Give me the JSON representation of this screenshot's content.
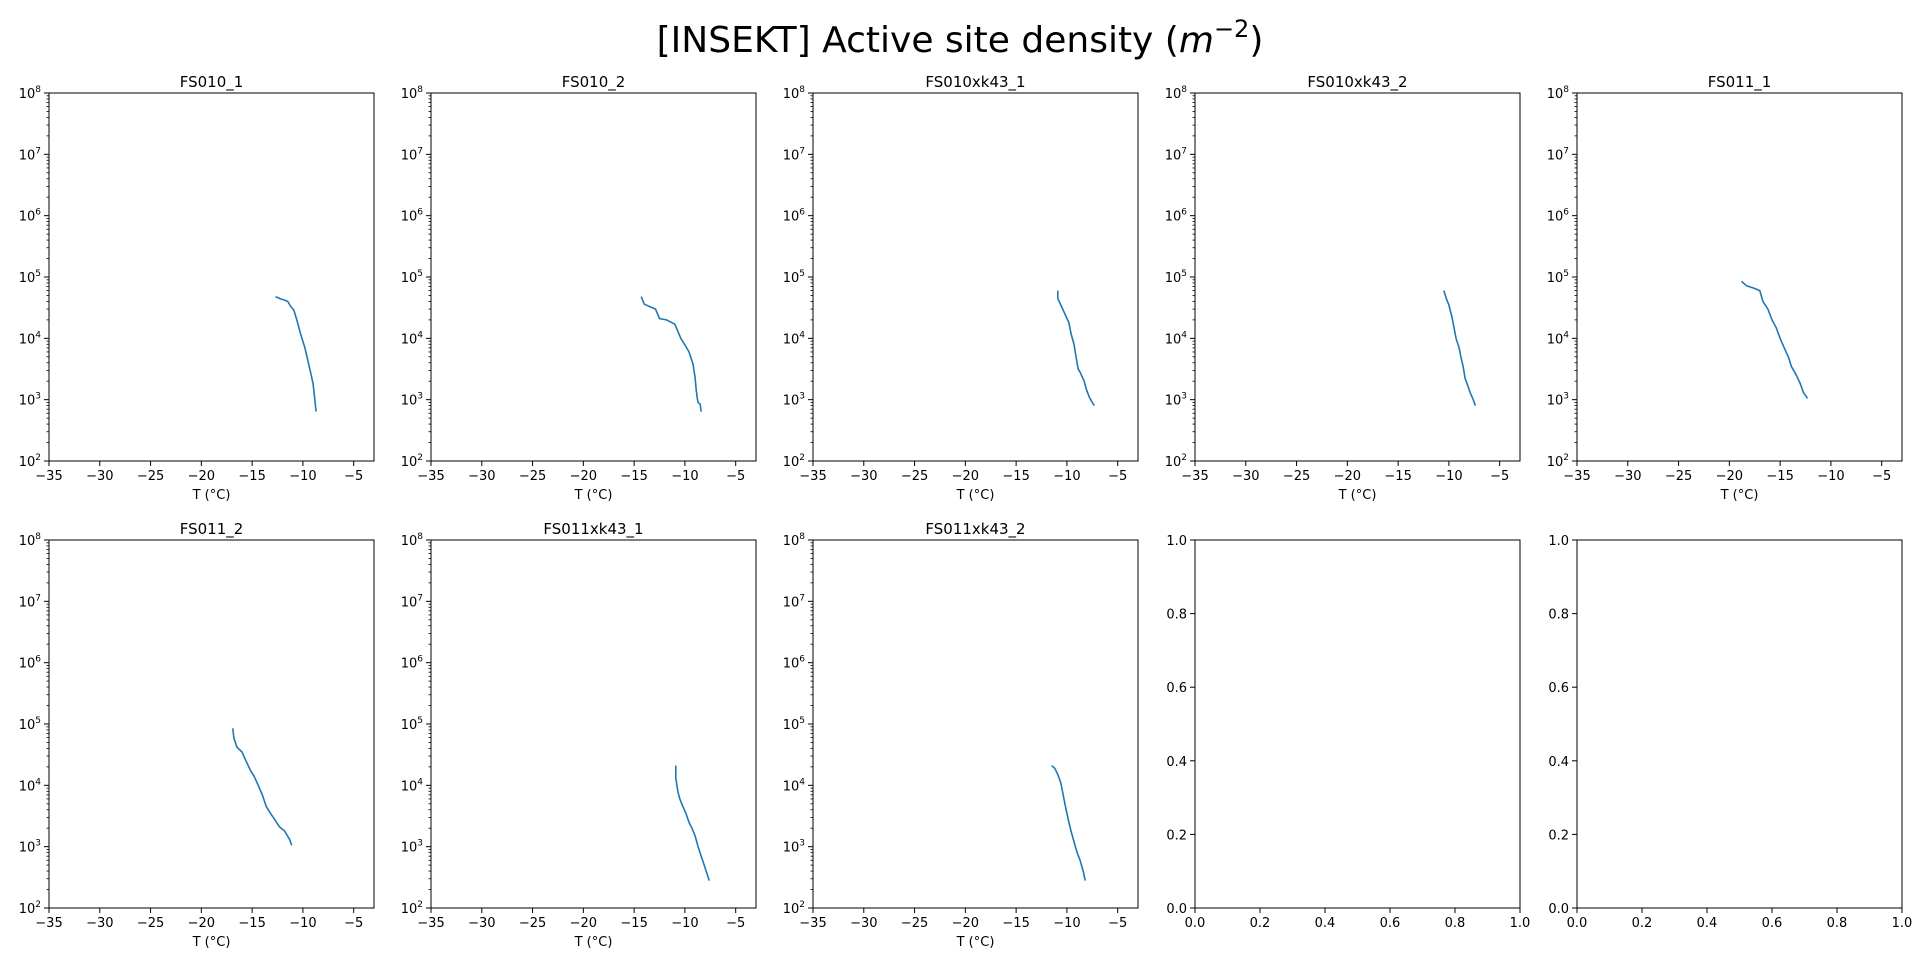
{
  "figure": {
    "title_prefix": "[INSEKT] Active site density (",
    "title_unit_base": "m",
    "title_unit_exponent": "−2",
    "title_suffix": ")"
  },
  "chart_data": [
    {
      "type": "line",
      "title": "FS010_1",
      "xlabel": "T (°C)",
      "ylabel": "",
      "xlim": [
        -35,
        -3
      ],
      "ylim": [
        100,
        100000000
      ],
      "yscale": "log",
      "xticks": [
        "−35",
        "−30",
        "−25",
        "−20",
        "−15",
        "−10",
        "−5"
      ],
      "yticks": [
        {
          "base": "10",
          "exp": "2"
        },
        {
          "base": "10",
          "exp": "3"
        },
        {
          "base": "10",
          "exp": "4"
        },
        {
          "base": "10",
          "exp": "5"
        },
        {
          "base": "10",
          "exp": "6"
        },
        {
          "base": "10",
          "exp": "7"
        },
        {
          "base": "10",
          "exp": "8"
        }
      ],
      "color": "#1f77b4",
      "x": [
        -12.7,
        -12.2,
        -11.8,
        -11.5,
        -11.2,
        -10.9,
        -10.6,
        -10.3,
        -10.1,
        -9.8,
        -9.6,
        -9.4,
        -9.2,
        -9.0,
        -8.9,
        -8.8,
        -8.7
      ],
      "y": [
        48000,
        44000,
        42000,
        40000,
        33000,
        29000,
        20000,
        13000,
        10000,
        7000,
        5000,
        3600,
        2600,
        1800,
        1300,
        900,
        640
      ]
    },
    {
      "type": "line",
      "title": "FS010_2",
      "xlabel": "T (°C)",
      "ylabel": "",
      "xlim": [
        -35,
        -3
      ],
      "ylim": [
        100,
        100000000
      ],
      "yscale": "log",
      "xticks": [
        "−35",
        "−30",
        "−25",
        "−20",
        "−15",
        "−10",
        "−5"
      ],
      "yticks": [
        {
          "base": "10",
          "exp": "2"
        },
        {
          "base": "10",
          "exp": "3"
        },
        {
          "base": "10",
          "exp": "4"
        },
        {
          "base": "10",
          "exp": "5"
        },
        {
          "base": "10",
          "exp": "6"
        },
        {
          "base": "10",
          "exp": "7"
        },
        {
          "base": "10",
          "exp": "8"
        }
      ],
      "color": "#1f77b4",
      "x": [
        -14.3,
        -14.0,
        -13.3,
        -12.9,
        -12.5,
        -11.8,
        -11.0,
        -10.7,
        -10.4,
        -10.0,
        -9.6,
        -9.2,
        -9.0,
        -8.9,
        -8.8,
        -8.7,
        -8.5,
        -8.4
      ],
      "y": [
        48000,
        36000,
        32000,
        30000,
        21000,
        20000,
        17000,
        13000,
        10000,
        7800,
        6000,
        3800,
        2300,
        1500,
        1100,
        900,
        850,
        640
      ]
    },
    {
      "type": "line",
      "title": "FS010xk43_1",
      "xlabel": "T (°C)",
      "ylabel": "",
      "xlim": [
        -35,
        -3
      ],
      "ylim": [
        100,
        100000000
      ],
      "yscale": "log",
      "xticks": [
        "−35",
        "−30",
        "−25",
        "−20",
        "−15",
        "−10",
        "−5"
      ],
      "yticks": [
        {
          "base": "10",
          "exp": "2"
        },
        {
          "base": "10",
          "exp": "3"
        },
        {
          "base": "10",
          "exp": "4"
        },
        {
          "base": "10",
          "exp": "5"
        },
        {
          "base": "10",
          "exp": "6"
        },
        {
          "base": "10",
          "exp": "7"
        },
        {
          "base": "10",
          "exp": "8"
        }
      ],
      "color": "#1f77b4",
      "x": [
        -10.9,
        -10.9,
        -10.6,
        -10.2,
        -9.8,
        -9.6,
        -9.3,
        -9.1,
        -8.9,
        -8.7,
        -8.3,
        -8.1,
        -7.8,
        -7.5,
        -7.3
      ],
      "y": [
        60000,
        45000,
        35000,
        25000,
        18000,
        12000,
        8000,
        5000,
        3200,
        2800,
        2000,
        1500,
        1100,
        900,
        800
      ]
    },
    {
      "type": "line",
      "title": "FS010xk43_2",
      "xlabel": "T (°C)",
      "ylabel": "",
      "xlim": [
        -35,
        -3
      ],
      "ylim": [
        100,
        100000000
      ],
      "yscale": "log",
      "xticks": [
        "−35",
        "−30",
        "−25",
        "−20",
        "−15",
        "−10",
        "−5"
      ],
      "yticks": [
        {
          "base": "10",
          "exp": "2"
        },
        {
          "base": "10",
          "exp": "3"
        },
        {
          "base": "10",
          "exp": "4"
        },
        {
          "base": "10",
          "exp": "5"
        },
        {
          "base": "10",
          "exp": "6"
        },
        {
          "base": "10",
          "exp": "7"
        },
        {
          "base": "10",
          "exp": "8"
        }
      ],
      "color": "#1f77b4",
      "x": [
        -10.5,
        -10.2,
        -10.0,
        -9.7,
        -9.5,
        -9.3,
        -9.0,
        -8.8,
        -8.6,
        -8.4,
        -8.2,
        -7.9,
        -7.6,
        -7.4
      ],
      "y": [
        60000,
        42000,
        35000,
        22000,
        15000,
        10000,
        7000,
        4800,
        3500,
        2200,
        1800,
        1300,
        1000,
        800
      ]
    },
    {
      "type": "line",
      "title": "FS011_1",
      "xlabel": "T (°C)",
      "ylabel": "",
      "xlim": [
        -35,
        -3
      ],
      "ylim": [
        100,
        100000000
      ],
      "yscale": "log",
      "xticks": [
        "−35",
        "−30",
        "−25",
        "−20",
        "−15",
        "−10",
        "−5"
      ],
      "yticks": [
        {
          "base": "10",
          "exp": "2"
        },
        {
          "base": "10",
          "exp": "3"
        },
        {
          "base": "10",
          "exp": "4"
        },
        {
          "base": "10",
          "exp": "5"
        },
        {
          "base": "10",
          "exp": "6"
        },
        {
          "base": "10",
          "exp": "7"
        },
        {
          "base": "10",
          "exp": "8"
        }
      ],
      "color": "#1f77b4",
      "x": [
        -18.8,
        -18.3,
        -17.5,
        -17.0,
        -16.7,
        -16.2,
        -15.8,
        -15.4,
        -15.0,
        -14.6,
        -14.2,
        -13.9,
        -13.4,
        -13.0,
        -12.7,
        -12.3
      ],
      "y": [
        85000,
        72000,
        65000,
        60000,
        40000,
        30000,
        20000,
        15000,
        10000,
        7000,
        5000,
        3500,
        2500,
        1800,
        1300,
        1050
      ]
    },
    {
      "type": "line",
      "title": "FS011_2",
      "xlabel": "T (°C)",
      "ylabel": "",
      "xlim": [
        -35,
        -3
      ],
      "ylim": [
        100,
        100000000
      ],
      "yscale": "log",
      "xticks": [
        "−35",
        "−30",
        "−25",
        "−20",
        "−15",
        "−10",
        "−5"
      ],
      "yticks": [
        {
          "base": "10",
          "exp": "2"
        },
        {
          "base": "10",
          "exp": "3"
        },
        {
          "base": "10",
          "exp": "4"
        },
        {
          "base": "10",
          "exp": "5"
        },
        {
          "base": "10",
          "exp": "6"
        },
        {
          "base": "10",
          "exp": "7"
        },
        {
          "base": "10",
          "exp": "8"
        }
      ],
      "color": "#1f77b4",
      "x": [
        -16.9,
        -16.8,
        -16.5,
        -16.0,
        -15.6,
        -15.2,
        -14.8,
        -14.4,
        -14.0,
        -13.6,
        -13.2,
        -12.8,
        -12.3,
        -11.8,
        -11.3,
        -11.1
      ],
      "y": [
        85000,
        60000,
        42000,
        35000,
        25000,
        18000,
        14000,
        10000,
        7000,
        4500,
        3500,
        2800,
        2100,
        1800,
        1300,
        1050
      ]
    },
    {
      "type": "line",
      "title": "FS011xk43_1",
      "xlabel": "T (°C)",
      "ylabel": "",
      "xlim": [
        -35,
        -3
      ],
      "ylim": [
        100,
        100000000
      ],
      "yscale": "log",
      "xticks": [
        "−35",
        "−30",
        "−25",
        "−20",
        "−15",
        "−10",
        "−5"
      ],
      "yticks": [
        {
          "base": "10",
          "exp": "2"
        },
        {
          "base": "10",
          "exp": "3"
        },
        {
          "base": "10",
          "exp": "4"
        },
        {
          "base": "10",
          "exp": "5"
        },
        {
          "base": "10",
          "exp": "6"
        },
        {
          "base": "10",
          "exp": "7"
        },
        {
          "base": "10",
          "exp": "8"
        }
      ],
      "color": "#1f77b4",
      "x": [
        -10.9,
        -10.9,
        -10.7,
        -10.5,
        -10.2,
        -9.9,
        -9.6,
        -9.3,
        -9.0,
        -8.7,
        -8.4,
        -8.1,
        -7.8,
        -7.6
      ],
      "y": [
        21000,
        13000,
        8000,
        6000,
        4500,
        3500,
        2500,
        2000,
        1500,
        1000,
        700,
        500,
        350,
        280
      ]
    },
    {
      "type": "line",
      "title": "FS011xk43_2",
      "xlabel": "T (°C)",
      "ylabel": "",
      "xlim": [
        -35,
        -3
      ],
      "ylim": [
        100,
        100000000
      ],
      "yscale": "log",
      "xticks": [
        "−35",
        "−30",
        "−25",
        "−20",
        "−15",
        "−10",
        "−5"
      ],
      "yticks": [
        {
          "base": "10",
          "exp": "2"
        },
        {
          "base": "10",
          "exp": "3"
        },
        {
          "base": "10",
          "exp": "4"
        },
        {
          "base": "10",
          "exp": "5"
        },
        {
          "base": "10",
          "exp": "6"
        },
        {
          "base": "10",
          "exp": "7"
        },
        {
          "base": "10",
          "exp": "8"
        }
      ],
      "color": "#1f77b4",
      "x": [
        -11.5,
        -11.2,
        -10.9,
        -10.6,
        -10.4,
        -10.2,
        -10.0,
        -9.8,
        -9.6,
        -9.3,
        -9.0,
        -8.7,
        -8.4,
        -8.2
      ],
      "y": [
        21000,
        19000,
        15000,
        11000,
        7500,
        5000,
        3500,
        2500,
        1800,
        1200,
        800,
        600,
        400,
        280
      ]
    },
    {
      "type": "line",
      "title": "",
      "xlabel": "",
      "ylabel": "",
      "xlim": [
        0,
        1
      ],
      "ylim": [
        0,
        1
      ],
      "yscale": "linear",
      "xticks": [
        "0.0",
        "0.2",
        "0.4",
        "0.6",
        "0.8",
        "1.0"
      ],
      "yticks": [
        "0.0",
        "0.2",
        "0.4",
        "0.6",
        "0.8",
        "1.0"
      ],
      "x": [],
      "y": []
    },
    {
      "type": "line",
      "title": "",
      "xlabel": "",
      "ylabel": "",
      "xlim": [
        0,
        1
      ],
      "ylim": [
        0,
        1
      ],
      "yscale": "linear",
      "xticks": [
        "0.0",
        "0.2",
        "0.4",
        "0.6",
        "0.8",
        "1.0"
      ],
      "yticks": [
        "0.0",
        "0.2",
        "0.4",
        "0.6",
        "0.8",
        "1.0"
      ],
      "x": [],
      "y": []
    }
  ]
}
